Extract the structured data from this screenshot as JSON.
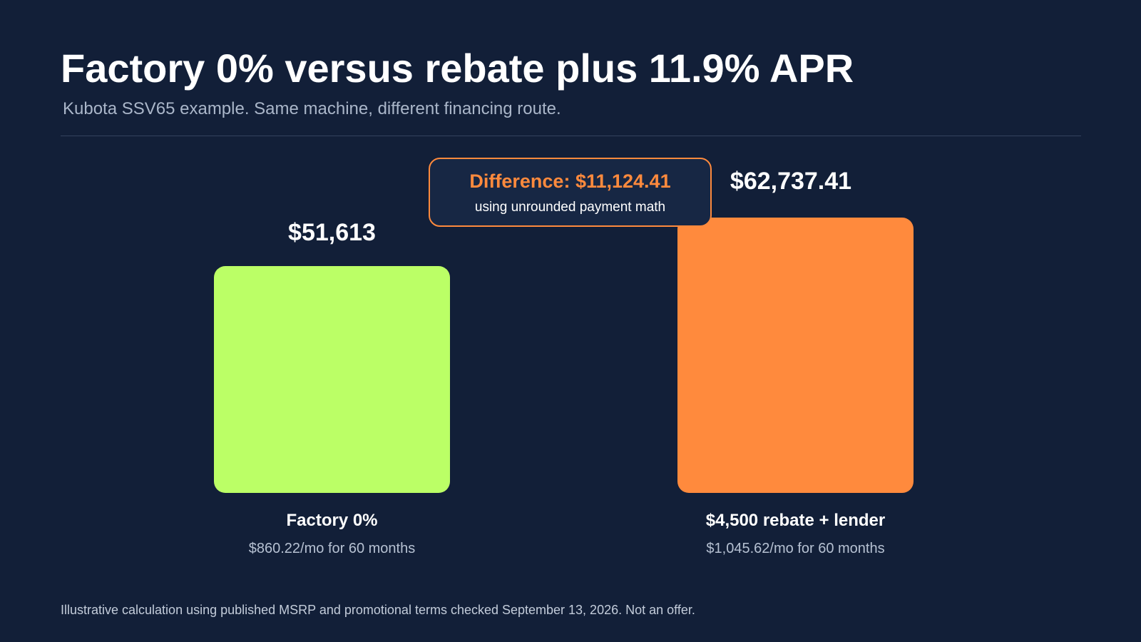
{
  "slide": {
    "title": "Factory 0% versus rebate plus 11.9% APR",
    "subtitle": "Kubota SSV65 example. Same machine, different financing route.",
    "footnote": "Illustrative calculation using published MSRP and promotional terms checked September 13, 2026. Not an offer."
  },
  "callout": {
    "title": "Difference: $11,124.41",
    "subtitle": "using unrounded payment math"
  },
  "colors": {
    "background": "#121f38",
    "factory_bar": "#bbff66",
    "rebate_bar": "#ff8a3d",
    "accent": "#ff8a3d"
  },
  "chart_data": {
    "type": "bar",
    "title": "Factory 0% versus rebate plus 11.9% APR",
    "categories": [
      "Factory 0%",
      "$4,500 rebate + lender"
    ],
    "values": [
      51613,
      62737.41
    ],
    "value_labels": [
      "$51,613",
      "$62,737.41"
    ],
    "sublabels": [
      "$860.22/mo for 60 months",
      "$1,045.62/mo for 60 months"
    ],
    "colors": [
      "#bbff66",
      "#ff8a3d"
    ],
    "xlabel": "",
    "ylabel": "",
    "grid": false
  }
}
